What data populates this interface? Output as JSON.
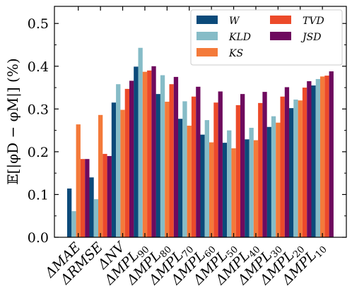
{
  "chart_data": {
    "type": "bar",
    "ylabel": "𝔼[|φD − φM|] (%)",
    "ylim": [
      0,
      0.54
    ],
    "yticks": [
      "0.0",
      "0.1",
      "0.2",
      "0.3",
      "0.4",
      "0.5"
    ],
    "ytick_values": [
      0.0,
      0.1,
      0.2,
      0.3,
      0.4,
      0.5
    ],
    "categories": [
      "ΔMAE",
      "ΔRMSE",
      "ΔNV",
      "ΔMPL90",
      "ΔMPL80",
      "ΔMPL70",
      "ΔMPL60",
      "ΔMPL50",
      "ΔMPL40",
      "ΔMPL30",
      "ΔMPL20",
      "ΔMPL10"
    ],
    "category_labels": [
      {
        "main": "ΔMAE",
        "sub": ""
      },
      {
        "main": "ΔRMSE",
        "sub": ""
      },
      {
        "main": "ΔNV",
        "sub": ""
      },
      {
        "main": "ΔMPL",
        "sub": "90"
      },
      {
        "main": "ΔMPL",
        "sub": "80"
      },
      {
        "main": "ΔMPL",
        "sub": "70"
      },
      {
        "main": "ΔMPL",
        "sub": "60"
      },
      {
        "main": "ΔMPL",
        "sub": "50"
      },
      {
        "main": "ΔMPL",
        "sub": "40"
      },
      {
        "main": "ΔMPL",
        "sub": "30"
      },
      {
        "main": "ΔMPL",
        "sub": "20"
      },
      {
        "main": "ΔMPL",
        "sub": "10"
      }
    ],
    "series": [
      {
        "name": "W",
        "color": "#0b4a7a",
        "values": [
          0.114,
          0.14,
          0.315,
          0.399,
          0.335,
          0.277,
          0.24,
          0.221,
          0.229,
          0.258,
          0.302,
          0.355
        ]
      },
      {
        "name": "KLD",
        "color": "#86bcc7",
        "values": [
          0.061,
          0.089,
          0.358,
          0.443,
          0.379,
          0.318,
          0.274,
          0.25,
          0.256,
          0.283,
          0.322,
          0.37
        ]
      },
      {
        "name": "KS",
        "color": "#f47a3a",
        "values": [
          0.264,
          0.286,
          0.298,
          0.387,
          0.317,
          0.261,
          0.222,
          0.208,
          0.227,
          0.268,
          0.32,
          0.376
        ]
      },
      {
        "name": "TVD",
        "color": "#ec4a2a",
        "values": [
          0.183,
          0.195,
          0.347,
          0.39,
          0.358,
          0.329,
          0.315,
          0.309,
          0.314,
          0.329,
          0.35,
          0.378
        ]
      },
      {
        "name": "JSD",
        "color": "#6e0a5e",
        "values": [
          0.183,
          0.19,
          0.366,
          0.4,
          0.375,
          0.352,
          0.341,
          0.335,
          0.34,
          0.351,
          0.365,
          0.388
        ]
      }
    ],
    "legend": {
      "position": "top-right",
      "columns": 2
    },
    "grid": false
  }
}
